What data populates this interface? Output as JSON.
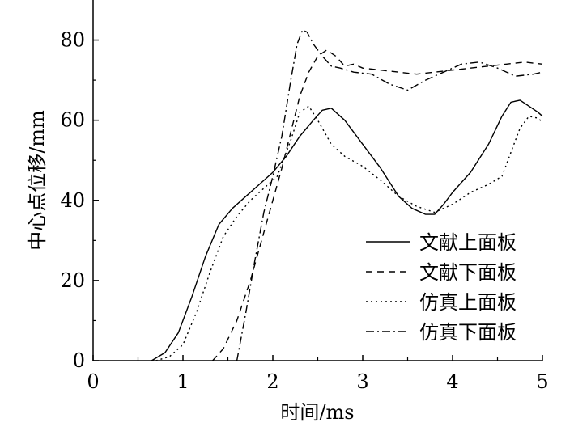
{
  "chart_data": {
    "type": "line",
    "xlabel": "时间/ms",
    "ylabel": "中心点位移/mm",
    "xlim": [
      0,
      5
    ],
    "ylim": [
      0,
      90
    ],
    "xticks": [
      "0",
      "1",
      "2",
      "3",
      "4",
      "5"
    ],
    "yticks": [
      "0",
      "20",
      "40",
      "60",
      "80"
    ],
    "grid": false,
    "legend_position": "bottom-right",
    "series": [
      {
        "name": "文献上面板",
        "dash": "solid",
        "x": [
          0.65,
          0.8,
          0.95,
          1.1,
          1.25,
          1.4,
          1.55,
          1.7,
          1.85,
          2.0,
          2.15,
          2.3,
          2.45,
          2.55,
          2.65,
          2.8,
          3.0,
          3.2,
          3.4,
          3.55,
          3.7,
          3.8,
          3.9,
          4.0,
          4.2,
          4.4,
          4.55,
          4.65,
          4.75,
          4.85,
          4.95,
          5.0
        ],
        "y": [
          0,
          2,
          7,
          16,
          26,
          34,
          38,
          41,
          44,
          47,
          51,
          56,
          60,
          62.5,
          63,
          60,
          54,
          48,
          41,
          38,
          36.5,
          36.5,
          39,
          42,
          47,
          54,
          61,
          64.5,
          65,
          63.5,
          62,
          61
        ]
      },
      {
        "name": "文献下面板",
        "dash": "8,6",
        "x": [
          1.33,
          1.45,
          1.6,
          1.75,
          1.9,
          2.0,
          2.1,
          2.2,
          2.3,
          2.4,
          2.5,
          2.6,
          2.7,
          2.8,
          2.9,
          3.0,
          3.2,
          3.4,
          3.6,
          3.8,
          4.0,
          4.2,
          4.4,
          4.6,
          4.8,
          5.0
        ],
        "y": [
          0,
          3,
          10,
          20,
          32,
          40,
          48,
          57,
          66,
          72,
          76,
          77.5,
          76,
          73.5,
          74,
          73,
          72.5,
          72,
          71.5,
          72,
          72.5,
          73,
          73.5,
          74,
          74.5,
          74
        ]
      },
      {
        "name": "仿真上面板",
        "dash": "2,4",
        "x": [
          0.7,
          0.85,
          1.0,
          1.15,
          1.3,
          1.45,
          1.6,
          1.75,
          1.9,
          2.05,
          2.2,
          2.3,
          2.4,
          2.5,
          2.65,
          2.8,
          3.0,
          3.2,
          3.4,
          3.6,
          3.8,
          4.0,
          4.2,
          4.4,
          4.55,
          4.65,
          4.75,
          4.85,
          4.95,
          5.0
        ],
        "y": [
          0,
          1,
          4,
          12,
          22,
          31,
          36,
          40,
          43,
          46,
          55,
          62,
          63.5,
          60,
          54,
          51,
          48.5,
          45,
          41,
          38.5,
          37,
          39,
          42,
          44,
          46,
          52,
          58,
          61,
          60.5,
          59.5
        ]
      },
      {
        "name": "仿真下面板",
        "dash": "10,4,2,4",
        "x": [
          1.6,
          1.7,
          1.8,
          1.9,
          2.0,
          2.1,
          2.2,
          2.27,
          2.33,
          2.38,
          2.45,
          2.55,
          2.65,
          2.75,
          2.9,
          3.1,
          3.3,
          3.5,
          3.7,
          3.9,
          4.1,
          4.3,
          4.5,
          4.7,
          4.9,
          5.0
        ],
        "y": [
          0,
          12,
          25,
          37,
          46,
          56,
          70,
          79,
          82.5,
          82,
          79,
          76,
          73.5,
          73,
          72,
          71.5,
          69,
          67.5,
          70,
          72,
          74,
          74.5,
          73,
          71,
          71.5,
          72
        ]
      }
    ]
  }
}
